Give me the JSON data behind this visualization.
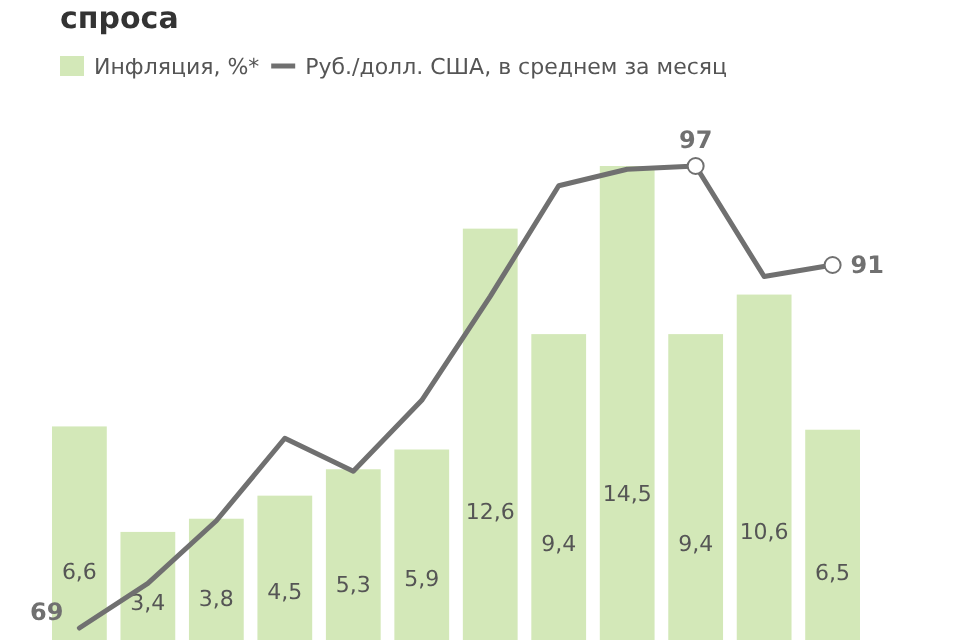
{
  "chart_data": [
    {
      "type": "bar",
      "title": "спроса",
      "legend": "top left",
      "categories": [
        null,
        null,
        null,
        null,
        null,
        null,
        null,
        null,
        null,
        null,
        null,
        null
      ],
      "series": [
        {
          "name": "Инфляция, %*",
          "color": "#d3e8b8",
          "values": [
            6.6,
            3.4,
            3.8,
            4.5,
            5.3,
            5.9,
            12.6,
            9.4,
            14.5,
            9.4,
            10.6,
            6.5
          ],
          "value_labels": [
            "6,6",
            "3,4",
            "3,8",
            "4,5",
            "5,3",
            "5,9",
            "12,6",
            "9,4",
            "14,5",
            "9,4",
            "10,6",
            "6,5"
          ]
        }
      ]
    },
    {
      "type": "line",
      "legend": "top",
      "categories": [
        null,
        null,
        null,
        null,
        null,
        null,
        null,
        null,
        null,
        null,
        null,
        null
      ],
      "series": [
        {
          "name": "Руб./долл. США, в среднем за месяц",
          "color": "#707070",
          "values": [
            69,
            71.7,
            75.5,
            80.5,
            78.5,
            82.8,
            89.1,
            95.8,
            96.8,
            97,
            90.3,
            91
          ],
          "value_labels": [
            "69",
            null,
            null,
            null,
            null,
            null,
            null,
            null,
            null,
            "97",
            null,
            "91"
          ]
        }
      ]
    }
  ]
}
